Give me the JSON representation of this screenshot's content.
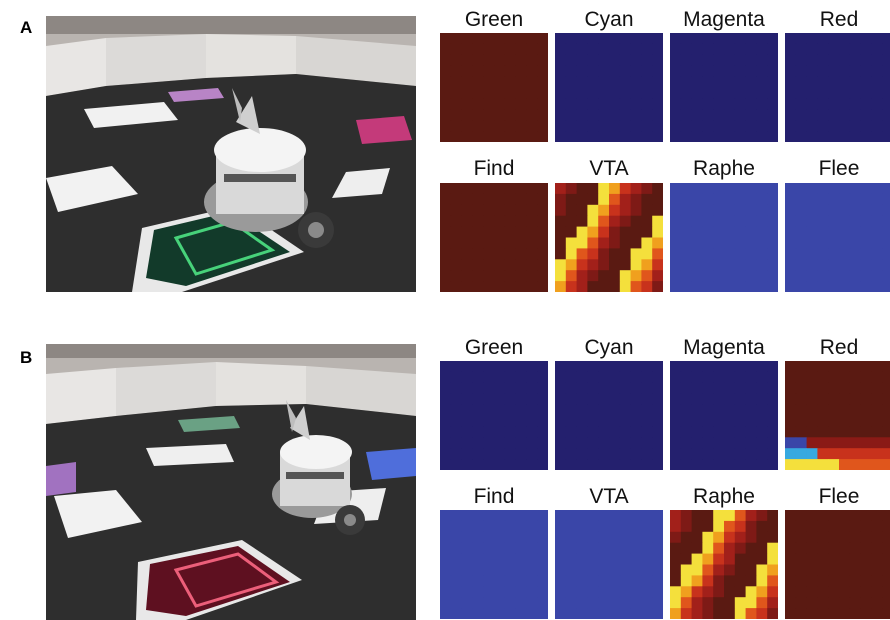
{
  "figure": {
    "panels": [
      {
        "letter": "A",
        "rows": [
          [
            {
              "label": "Green",
              "style": "solid",
              "color": "#5a1a12"
            },
            {
              "label": "Cyan",
              "style": "solid",
              "color": "#24206e"
            },
            {
              "label": "Magenta",
              "style": "solid",
              "color": "#24206e"
            },
            {
              "label": "Red",
              "style": "solid",
              "color": "#24206e"
            }
          ],
          [
            {
              "label": "Find",
              "style": "solid",
              "color": "#5a1a12"
            },
            {
              "label": "VTA",
              "style": "noisy-hot",
              "color": "#9c1a18",
              "seed": 7
            },
            {
              "label": "Raphe",
              "style": "solid",
              "color": "#3a46a8"
            },
            {
              "label": "Flee",
              "style": "solid",
              "color": "#3a46a8"
            }
          ]
        ]
      },
      {
        "letter": "B",
        "rows": [
          [
            {
              "label": "Green",
              "style": "solid",
              "color": "#24206e"
            },
            {
              "label": "Cyan",
              "style": "solid",
              "color": "#24206e"
            },
            {
              "label": "Magenta",
              "style": "solid",
              "color": "#24206e"
            },
            {
              "label": "Red",
              "style": "radial-corner",
              "color": "#5a1a12"
            }
          ],
          [
            {
              "label": "Find",
              "style": "solid",
              "color": "#3a46a8"
            },
            {
              "label": "VTA",
              "style": "solid",
              "color": "#3a46a8"
            },
            {
              "label": "Raphe",
              "style": "noisy-hot",
              "color": "#c02018",
              "seed": 13
            },
            {
              "label": "Flee",
              "style": "solid",
              "color": "#5a1a12"
            }
          ]
        ]
      }
    ]
  }
}
